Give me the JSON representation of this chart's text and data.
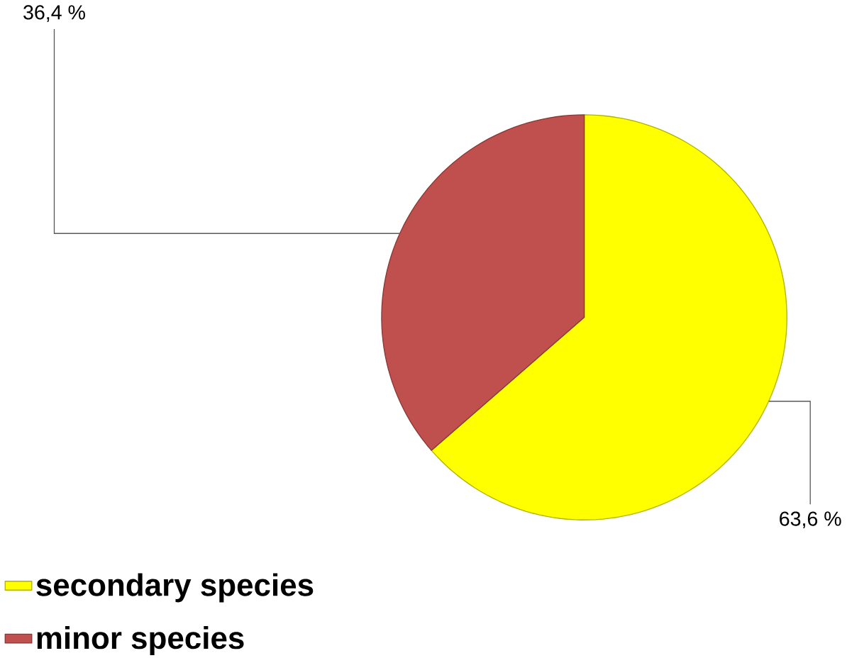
{
  "chart_data": {
    "type": "pie",
    "categories": [
      "secondary species",
      "minor species"
    ],
    "values": [
      63.6,
      36.4
    ],
    "value_labels": [
      "63,6 %",
      "36,4 %"
    ],
    "colors": [
      "#ffff00",
      "#c0504d"
    ],
    "legend": "bottom"
  }
}
